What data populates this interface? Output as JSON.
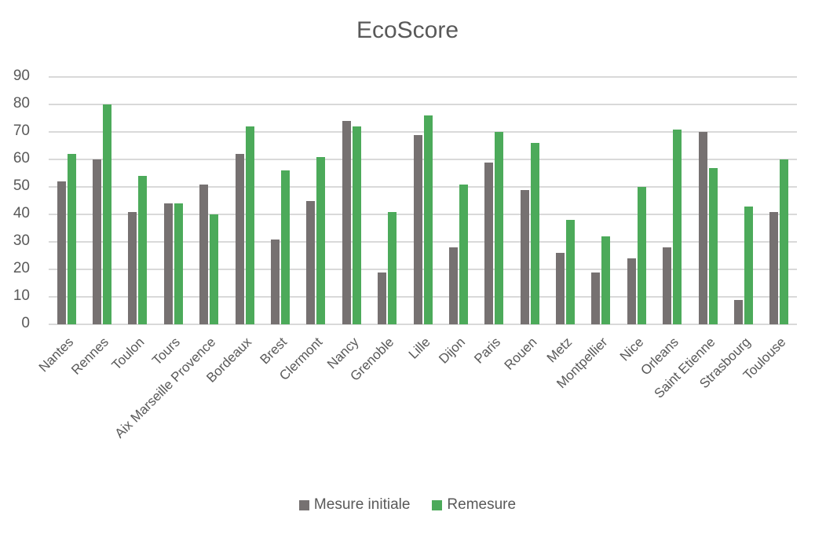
{
  "chart_data": {
    "type": "bar",
    "title": "EcoScore",
    "xlabel": "",
    "ylabel": "",
    "ylim": [
      0,
      90
    ],
    "yticks": [
      0,
      10,
      20,
      30,
      40,
      50,
      60,
      70,
      80,
      90
    ],
    "grid": true,
    "legend_position": "bottom",
    "categories": [
      "Nantes",
      "Rennes",
      "Toulon",
      "Tours",
      "Aix Marseille Provence",
      "Bordeaux",
      "Brest",
      "Clermont",
      "Nancy",
      "Grenoble",
      "Lille",
      "Dijon",
      "Paris",
      "Rouen",
      "Metz",
      "Montpellier",
      "Nice",
      "Orleans",
      "Saint Etienne",
      "Strasbourg",
      "Toulouse"
    ],
    "series": [
      {
        "name": "Mesure initiale",
        "color": "#767171",
        "values": [
          52,
          60,
          41,
          44,
          51,
          62,
          31,
          45,
          74,
          19,
          69,
          28,
          59,
          49,
          26,
          19,
          24,
          28,
          70,
          9,
          41
        ]
      },
      {
        "name": "Remesure",
        "color": "#4CAA5A",
        "values": [
          62,
          80,
          54,
          44,
          40,
          72,
          56,
          61,
          72,
          41,
          76,
          51,
          70,
          66,
          38,
          32,
          50,
          71,
          57,
          43,
          60
        ]
      }
    ]
  },
  "legend": {
    "items": [
      {
        "label": "Mesure initiale",
        "color": "#767171"
      },
      {
        "label": "Remesure",
        "color": "#4CAA5A"
      }
    ]
  }
}
